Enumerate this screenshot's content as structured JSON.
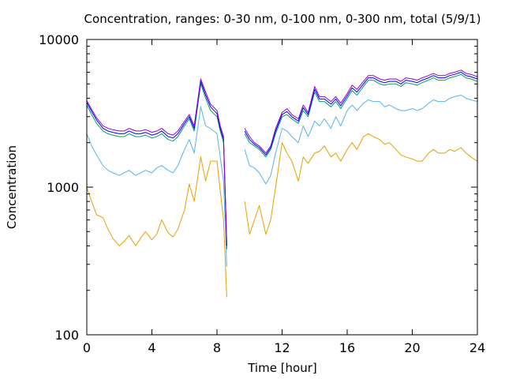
{
  "chart_data": {
    "type": "line",
    "title": "Concentration, ranges: 0-30 nm, 0-100 nm, 0-300 nm, total (5/9/1)",
    "xlabel": "Time [hour]",
    "ylabel": "Concentration",
    "xlim": [
      0,
      24
    ],
    "ylim": [
      100,
      10000
    ],
    "yscale": "log",
    "grid": false,
    "legend": "none",
    "x_ticks": [
      0,
      4,
      8,
      12,
      16,
      20,
      24
    ],
    "x_tick_labels": [
      "0",
      "4",
      "8",
      "12",
      "16",
      "20",
      "24"
    ],
    "y_ticks": [
      100,
      1000,
      10000
    ],
    "y_tick_labels": [
      "100",
      "1000",
      "10000"
    ],
    "series": [
      {
        "color": "#e69f00",
        "x": [
          0,
          0.3,
          0.6,
          1,
          1.3,
          1.6,
          2,
          2.3,
          2.6,
          3,
          3.3,
          3.6,
          4,
          4.3,
          4.6,
          5,
          5.3,
          5.6,
          6,
          6.3,
          6.6,
          7,
          7.3,
          7.6,
          8,
          8.2,
          8.4,
          8.6,
          9.7,
          10,
          10.3,
          10.6,
          11,
          11.3,
          11.6,
          12,
          12.3,
          12.6,
          13,
          13.3,
          13.6,
          14,
          14.3,
          14.6,
          15,
          15.3,
          15.6,
          16,
          16.3,
          16.6,
          17,
          17.3,
          17.6,
          18,
          18.3,
          18.6,
          19,
          19.3,
          19.6,
          20,
          20.3,
          20.6,
          21,
          21.3,
          21.6,
          22,
          22.3,
          22.6,
          23,
          23.3,
          23.6,
          24
        ],
        "y": [
          1000,
          800,
          650,
          620,
          520,
          450,
          400,
          430,
          470,
          400,
          450,
          500,
          440,
          480,
          600,
          490,
          460,
          520,
          700,
          1050,
          800,
          1600,
          1100,
          1500,
          1500,
          950,
          600,
          180,
          800,
          480,
          600,
          750,
          480,
          600,
          1000,
          2000,
          1700,
          1500,
          1100,
          1600,
          1450,
          1700,
          1750,
          1900,
          1600,
          1700,
          1500,
          1800,
          2000,
          1800,
          2200,
          2300,
          2200,
          2100,
          1950,
          2000,
          1800,
          1650,
          1600,
          1550,
          1500,
          1500,
          1700,
          1800,
          1700,
          1700,
          1800,
          1750,
          1850,
          1700,
          1600,
          1500
        ]
      },
      {
        "color": "#56b4e9",
        "x": [
          0,
          0.3,
          0.6,
          1,
          1.3,
          1.6,
          2,
          2.3,
          2.6,
          3,
          3.3,
          3.6,
          4,
          4.3,
          4.6,
          5,
          5.3,
          5.6,
          6,
          6.3,
          6.6,
          7,
          7.3,
          7.6,
          8,
          8.2,
          8.4,
          8.6,
          9.7,
          10,
          10.3,
          10.6,
          11,
          11.3,
          11.6,
          12,
          12.3,
          12.6,
          13,
          13.3,
          13.6,
          14,
          14.3,
          14.6,
          15,
          15.3,
          15.6,
          16,
          16.3,
          16.6,
          17,
          17.3,
          17.6,
          18,
          18.3,
          18.6,
          19,
          19.3,
          19.6,
          20,
          20.3,
          20.6,
          21,
          21.3,
          21.6,
          22,
          22.3,
          22.6,
          23,
          23.3,
          23.6,
          24
        ],
        "y": [
          2300,
          1900,
          1650,
          1400,
          1300,
          1250,
          1200,
          1250,
          1300,
          1200,
          1250,
          1300,
          1250,
          1350,
          1400,
          1300,
          1250,
          1400,
          1800,
          2100,
          1700,
          3500,
          2600,
          2500,
          2300,
          1600,
          1100,
          290,
          1800,
          1400,
          1350,
          1250,
          1050,
          1200,
          1700,
          2500,
          2400,
          2200,
          2000,
          2600,
          2200,
          2800,
          2600,
          2900,
          2500,
          3000,
          2600,
          3300,
          3600,
          3300,
          3700,
          3900,
          3800,
          3800,
          3500,
          3600,
          3400,
          3300,
          3300,
          3400,
          3300,
          3400,
          3700,
          3900,
          3800,
          3800,
          4000,
          4100,
          4200,
          4000,
          3900,
          3800
        ]
      },
      {
        "color": "#009e73",
        "x": [
          0,
          0.3,
          0.6,
          1,
          1.3,
          1.6,
          2,
          2.3,
          2.6,
          3,
          3.3,
          3.6,
          4,
          4.3,
          4.6,
          5,
          5.3,
          5.6,
          6,
          6.3,
          6.6,
          7,
          7.3,
          7.6,
          8,
          8.2,
          8.4,
          8.6,
          9.7,
          10,
          10.3,
          10.6,
          11,
          11.3,
          11.6,
          12,
          12.3,
          12.6,
          13,
          13.3,
          13.6,
          14,
          14.3,
          14.6,
          15,
          15.3,
          15.6,
          16,
          16.3,
          16.6,
          17,
          17.3,
          17.6,
          18,
          18.3,
          18.6,
          19,
          19.3,
          19.6,
          20,
          20.3,
          20.6,
          21,
          21.3,
          21.6,
          22,
          22.3,
          22.6,
          23,
          23.3,
          23.6,
          24
        ],
        "y": [
          3600,
          3100,
          2700,
          2400,
          2300,
          2250,
          2200,
          2200,
          2300,
          2200,
          2200,
          2250,
          2150,
          2200,
          2300,
          2100,
          2050,
          2200,
          2600,
          2900,
          2400,
          5000,
          4000,
          3300,
          3000,
          2400,
          2000,
          380,
          2300,
          2000,
          1900,
          1800,
          1600,
          1800,
          2300,
          3000,
          3100,
          2900,
          2700,
          3300,
          3000,
          4400,
          3800,
          3800,
          3500,
          3800,
          3400,
          4000,
          4500,
          4200,
          4800,
          5300,
          5300,
          5000,
          4900,
          5000,
          5000,
          4800,
          5100,
          5000,
          4900,
          5100,
          5300,
          5500,
          5300,
          5300,
          5500,
          5600,
          5800,
          5500,
          5400,
          5200
        ]
      },
      {
        "color": "#0000ff",
        "x": [
          0,
          0.3,
          0.6,
          1,
          1.3,
          1.6,
          2,
          2.3,
          2.6,
          3,
          3.3,
          3.6,
          4,
          4.3,
          4.6,
          5,
          5.3,
          5.6,
          6,
          6.3,
          6.6,
          7,
          7.3,
          7.6,
          8,
          8.2,
          8.4,
          8.6,
          9.7,
          10,
          10.3,
          10.6,
          11,
          11.3,
          11.6,
          12,
          12.3,
          12.6,
          13,
          13.3,
          13.6,
          14,
          14.3,
          14.6,
          15,
          15.3,
          15.6,
          16,
          16.3,
          16.6,
          17,
          17.3,
          17.6,
          18,
          18.3,
          18.6,
          19,
          19.3,
          19.6,
          20,
          20.3,
          20.6,
          21,
          21.3,
          21.6,
          22,
          22.3,
          22.6,
          23,
          23.3,
          23.6,
          24
        ],
        "y": [
          3750,
          3250,
          2850,
          2500,
          2400,
          2350,
          2300,
          2300,
          2400,
          2300,
          2300,
          2350,
          2250,
          2300,
          2400,
          2200,
          2150,
          2300,
          2700,
          3000,
          2500,
          5200,
          4200,
          3500,
          3150,
          2500,
          2100,
          400,
          2400,
          2100,
          1950,
          1850,
          1650,
          1850,
          2400,
          3100,
          3250,
          3000,
          2800,
          3450,
          3100,
          4600,
          3950,
          3950,
          3650,
          3950,
          3550,
          4150,
          4700,
          4400,
          5000,
          5500,
          5500,
          5200,
          5100,
          5200,
          5200,
          5000,
          5300,
          5200,
          5100,
          5300,
          5500,
          5700,
          5500,
          5500,
          5700,
          5800,
          6000,
          5700,
          5600,
          5400
        ]
      },
      {
        "color": "#9400d3",
        "x": [
          0,
          0.3,
          0.6,
          1,
          1.3,
          1.6,
          2,
          2.3,
          2.6,
          3,
          3.3,
          3.6,
          4,
          4.3,
          4.6,
          5,
          5.3,
          5.6,
          6,
          6.3,
          6.6,
          7,
          7.3,
          7.6,
          8,
          8.2,
          8.4,
          8.6,
          9.7,
          10,
          10.3,
          10.6,
          11,
          11.3,
          11.6,
          12,
          12.3,
          12.6,
          13,
          13.3,
          13.6,
          14,
          14.3,
          14.6,
          15,
          15.3,
          15.6,
          16,
          16.3,
          16.6,
          17,
          17.3,
          17.6,
          18,
          18.3,
          18.6,
          19,
          19.3,
          19.6,
          20,
          20.3,
          20.6,
          21,
          21.3,
          21.6,
          22,
          22.3,
          22.6,
          23,
          23.3,
          23.6,
          24
        ],
        "y": [
          3850,
          3350,
          2950,
          2600,
          2500,
          2450,
          2400,
          2400,
          2500,
          2400,
          2400,
          2450,
          2350,
          2400,
          2500,
          2300,
          2250,
          2400,
          2800,
          3100,
          2600,
          5400,
          4400,
          3650,
          3300,
          2600,
          2200,
          420,
          2500,
          2200,
          2000,
          1900,
          1700,
          1900,
          2500,
          3200,
          3400,
          3100,
          2900,
          3600,
          3200,
          4800,
          4100,
          4100,
          3800,
          4100,
          3700,
          4300,
          4900,
          4600,
          5200,
          5700,
          5700,
          5400,
          5300,
          5400,
          5400,
          5200,
          5500,
          5400,
          5300,
          5500,
          5700,
          5900,
          5700,
          5700,
          5900,
          6000,
          6200,
          5900,
          5800,
          5600
        ]
      }
    ]
  }
}
